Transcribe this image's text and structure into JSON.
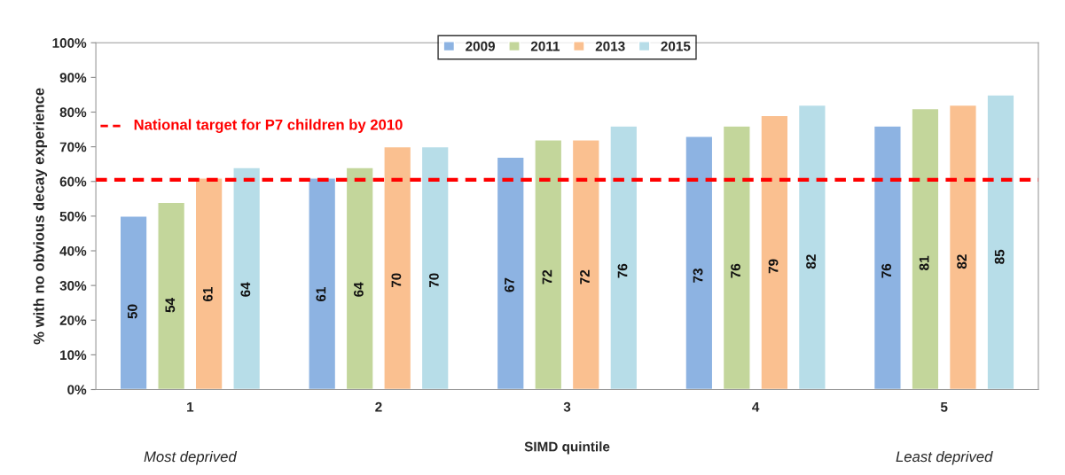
{
  "chart_data": {
    "type": "bar",
    "xlabel": "SIMD quintile",
    "ylabel": "% with no obvious decay experience",
    "categories": [
      "1",
      "2",
      "3",
      "4",
      "5"
    ],
    "series": [
      {
        "name": "2009",
        "color": "#8db3e2",
        "values": [
          50,
          61,
          67,
          73,
          76
        ]
      },
      {
        "name": "2011",
        "color": "#c3d69b",
        "values": [
          54,
          64,
          72,
          76,
          81
        ]
      },
      {
        "name": "2013",
        "color": "#fac090",
        "values": [
          61,
          70,
          72,
          79,
          82
        ]
      },
      {
        "name": "2015",
        "color": "#b7dde8",
        "values": [
          64,
          70,
          76,
          82,
          85
        ]
      }
    ],
    "ylim": [
      0,
      100
    ],
    "yticks": [
      {
        "value": 0,
        "label": "0%"
      },
      {
        "value": 10,
        "label": "10%"
      },
      {
        "value": 20,
        "label": "20%"
      },
      {
        "value": 30,
        "label": "30%"
      },
      {
        "value": 40,
        "label": "40%"
      },
      {
        "value": 50,
        "label": "50%"
      },
      {
        "value": 60,
        "label": "60%"
      },
      {
        "value": 70,
        "label": "70%"
      },
      {
        "value": 80,
        "label": "80%"
      },
      {
        "value": 90,
        "label": "90%"
      },
      {
        "value": 100,
        "label": "100%"
      }
    ],
    "ref_lines": [
      {
        "axis": "y",
        "value": 60.5,
        "label": "National target for P7 children by 2010",
        "color": "#ff0000",
        "line_style": "dashed"
      }
    ],
    "annotations": [
      "Most deprived",
      "Least deprived"
    ],
    "data_labels": true,
    "legend": "top",
    "grid": false
  }
}
